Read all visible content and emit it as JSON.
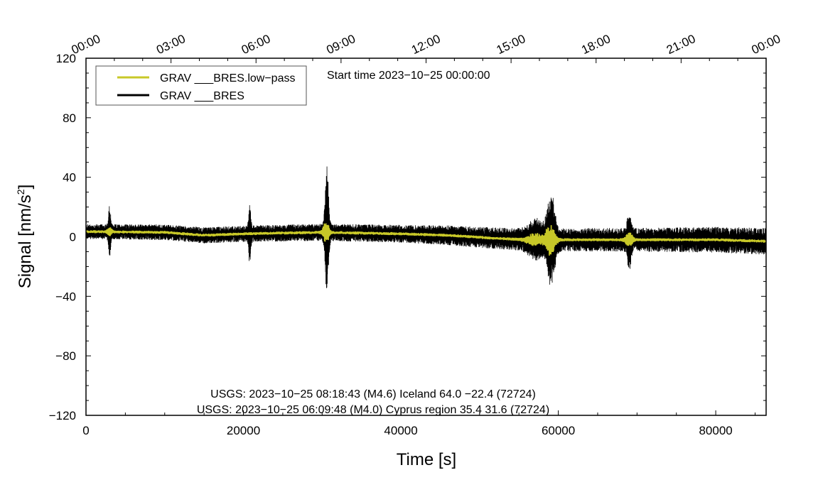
{
  "chart_data": {
    "type": "line",
    "xlabel": "Time [s]",
    "ylabel_main": "Signal [nm/s",
    "ylabel_sup": "2",
    "ylabel_end": "]",
    "xlim": [
      0,
      86400
    ],
    "ylim": [
      -120,
      120
    ],
    "x_ticks": [
      0,
      20000,
      40000,
      60000,
      80000
    ],
    "x_tick_labels": [
      "0",
      "20000",
      "40000",
      "60000",
      "80000"
    ],
    "y_ticks": [
      -120,
      -80,
      -40,
      0,
      40,
      80,
      120
    ],
    "y_tick_labels": [
      "−120",
      "−80",
      "−40",
      "0",
      "40",
      "80",
      "120"
    ],
    "top_ticks": [
      0,
      10800,
      21600,
      32400,
      43200,
      54000,
      64800,
      75600,
      86400
    ],
    "top_tick_labels": [
      "00:00",
      "03:00",
      "06:00",
      "09:00",
      "12:00",
      "15:00",
      "18:00",
      "21:00",
      "00:00"
    ],
    "start_time": "Start time 2023−10−25 00:00:00",
    "annotations": [
      "USGS: 2023−10−25 08:18:43 (M4.6) Iceland 64.0 −22.4 (72724)",
      "USGS: 2023−10−25 06:09:48 (M4.0) Cyprus region 35.4 31.6 (72724)"
    ],
    "legend_placement": "top-left",
    "series": [
      {
        "name": "GRAV ___BRES.low−pass",
        "color": "#c8c828",
        "baseline": [
          [
            0,
            3.5
          ],
          [
            10000,
            3
          ],
          [
            15000,
            1
          ],
          [
            20000,
            2
          ],
          [
            30000,
            3
          ],
          [
            40000,
            2
          ],
          [
            46000,
            1
          ],
          [
            52000,
            -1
          ],
          [
            56000,
            -2
          ],
          [
            60000,
            -2
          ],
          [
            70000,
            -2
          ],
          [
            80000,
            -2
          ],
          [
            86400,
            -3
          ]
        ],
        "noise_amplitude": 1,
        "bursts": [
          {
            "t": 3000,
            "amp": 3,
            "width": 300
          },
          {
            "t": 30500,
            "amp": 8,
            "width": 400
          },
          {
            "t": 57000,
            "amp": 4,
            "width": 1200
          },
          {
            "t": 59000,
            "amp": 10,
            "width": 700
          },
          {
            "t": 69000,
            "amp": 5,
            "width": 500
          }
        ]
      },
      {
        "name": "GRAV ___BRES",
        "color": "#000000",
        "baseline": [
          [
            0,
            3.5
          ],
          [
            10000,
            3
          ],
          [
            15000,
            1
          ],
          [
            20000,
            2
          ],
          [
            30000,
            3
          ],
          [
            40000,
            2
          ],
          [
            46000,
            1
          ],
          [
            52000,
            -1
          ],
          [
            56000,
            -2
          ],
          [
            60000,
            -2
          ],
          [
            70000,
            -2
          ],
          [
            80000,
            -2
          ],
          [
            86400,
            -3
          ]
        ],
        "noise_amplitude": [
          [
            0,
            5
          ],
          [
            20000,
            5.5
          ],
          [
            40000,
            6
          ],
          [
            55000,
            7.5
          ],
          [
            70000,
            8
          ],
          [
            86400,
            9
          ]
        ],
        "bursts": [
          {
            "t": 3000,
            "amp": 15,
            "width": 180
          },
          {
            "t": 20800,
            "amp": 16,
            "width": 180
          },
          {
            "t": 30600,
            "amp": 42,
            "width": 280
          },
          {
            "t": 57200,
            "amp": 8,
            "width": 1200
          },
          {
            "t": 59100,
            "amp": 26,
            "width": 600
          },
          {
            "t": 69000,
            "amp": 15,
            "width": 300
          }
        ]
      }
    ]
  }
}
